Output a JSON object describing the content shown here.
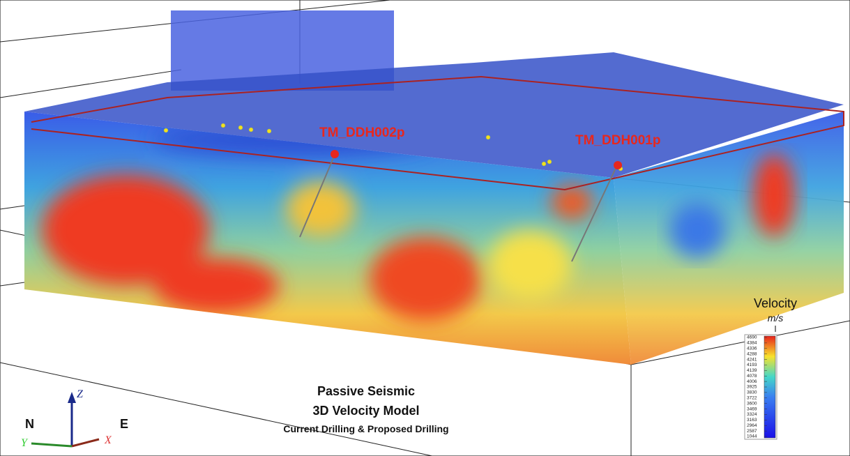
{
  "title": {
    "line1": "Passive Seismic",
    "line2": "3D Velocity Model",
    "line3": "Current Drilling & Proposed Drilling"
  },
  "drillholes": [
    {
      "label": "TM_DDH002p"
    },
    {
      "label": "TM_DDH001p"
    }
  ],
  "legend": {
    "title": "Velocity",
    "unit": "m/s",
    "ticks": [
      4690,
      4384,
      4336,
      4288,
      4241,
      4193,
      4139,
      4078,
      4006,
      3925,
      3830,
      3722,
      3600,
      3469,
      3324,
      3163,
      2964,
      2587,
      1044
    ]
  },
  "axes": {
    "north": "N",
    "east": "E",
    "z": "Z",
    "x": "X",
    "y": "Y"
  }
}
